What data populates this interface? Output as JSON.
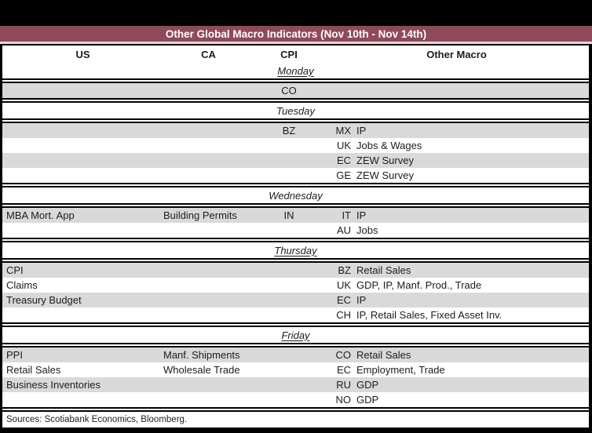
{
  "title": "Other Global Macro Indicators (Nov 10th - Nov 14th)",
  "column_headers": {
    "us": "US",
    "ca": "CA",
    "cpi": "CPI",
    "other_macro": "Other Macro"
  },
  "days": [
    {
      "label": "Monday",
      "underlined": true,
      "rows": [
        {
          "us": "",
          "ca": "",
          "cpi": "CO",
          "code": "",
          "other": ""
        }
      ]
    },
    {
      "label": "Tuesday",
      "underlined": false,
      "rows": [
        {
          "us": "",
          "ca": "",
          "cpi": "BZ",
          "code": "MX",
          "other": "IP"
        },
        {
          "us": "",
          "ca": "",
          "cpi": "",
          "code": "UK",
          "other": "Jobs & Wages"
        },
        {
          "us": "",
          "ca": "",
          "cpi": "",
          "code": "EC",
          "other": "ZEW Survey"
        },
        {
          "us": "",
          "ca": "",
          "cpi": "",
          "code": "GE",
          "other": "ZEW Survey"
        }
      ]
    },
    {
      "label": "Wednesday",
      "underlined": false,
      "rows": [
        {
          "us": "MBA Mort. App",
          "ca": "Building Permits",
          "cpi": "IN",
          "code": "IT",
          "other": "IP"
        },
        {
          "us": "",
          "ca": "",
          "cpi": "",
          "code": "AU",
          "other": "Jobs"
        }
      ]
    },
    {
      "label": "Thursday",
      "underlined": true,
      "rows": [
        {
          "us": "CPI",
          "ca": "",
          "cpi": "",
          "code": "BZ",
          "other": "Retail Sales"
        },
        {
          "us": "Claims",
          "ca": "",
          "cpi": "",
          "code": "UK",
          "other": "GDP, IP, Manf. Prod., Trade"
        },
        {
          "us": "Treasury Budget",
          "ca": "",
          "cpi": "",
          "code": "EC",
          "other": "IP"
        },
        {
          "us": "",
          "ca": "",
          "cpi": "",
          "code": "CH",
          "other": "IP, Retail Sales, Fixed Asset Inv."
        }
      ]
    },
    {
      "label": "Friday",
      "underlined": true,
      "rows": [
        {
          "us": "PPI",
          "ca": "Manf. Shipments",
          "cpi": "",
          "code": "CO",
          "other": "Retail Sales"
        },
        {
          "us": "Retail Sales",
          "ca": "Wholesale Trade",
          "cpi": "",
          "code": "EC",
          "other": "Employment, Trade"
        },
        {
          "us": "Business Inventories",
          "ca": "",
          "cpi": "",
          "code": "RU",
          "other": "GDP"
        },
        {
          "us": "",
          "ca": "",
          "cpi": "",
          "code": "NO",
          "other": "GDP"
        }
      ]
    }
  ],
  "sources": "Sources: Scotiabank Economics, Bloomberg.",
  "colors": {
    "accent_maroon": "#8E4A5B",
    "title_underline_pink": "#E8D7DC",
    "row_shade_grey": "#D9D9D9"
  }
}
